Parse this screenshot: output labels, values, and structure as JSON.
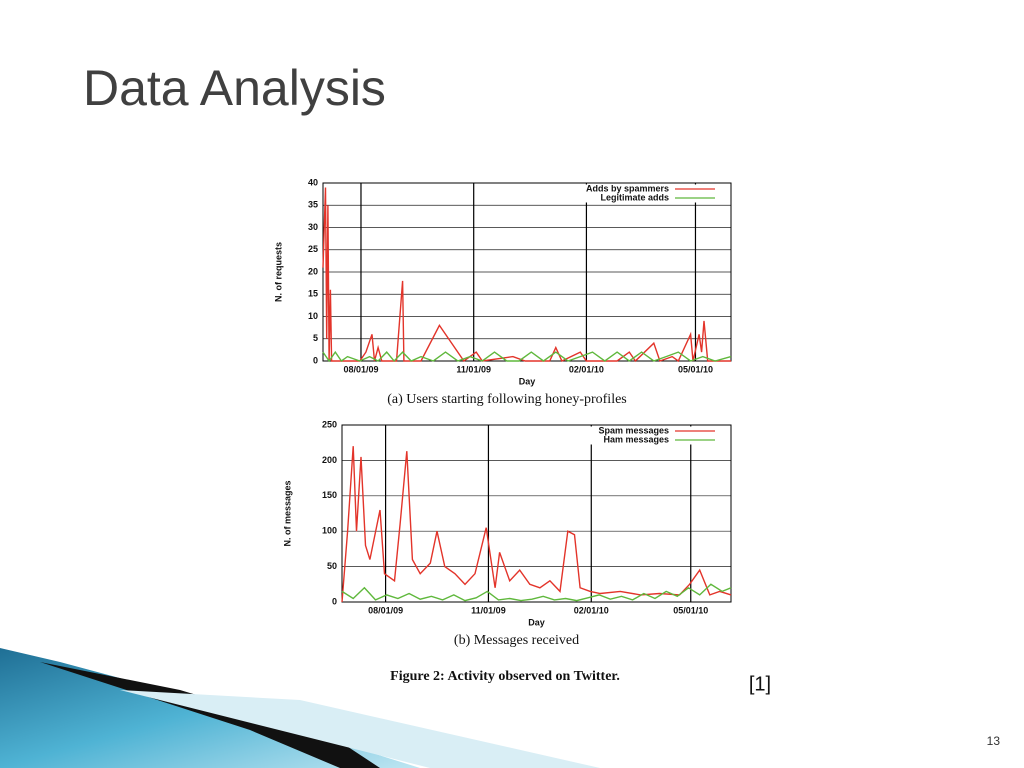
{
  "title": "Data Analysis",
  "figure_caption": "Figure 2: Activity observed on Twitter.",
  "citation": "[1]",
  "slide_number": "13",
  "chart_data": [
    {
      "type": "line",
      "caption": "(a) Users starting following honey-profiles",
      "x_label": "Day",
      "y_label": "N. of requests",
      "xlim": [
        0,
        333
      ],
      "ylim": [
        0,
        40
      ],
      "xticks": [
        {
          "value": 31,
          "label": "08/01/09"
        },
        {
          "value": 123,
          "label": "11/01/09"
        },
        {
          "value": 215,
          "label": "02/01/10"
        },
        {
          "value": 304,
          "label": "05/01/10"
        }
      ],
      "yticks": [
        0,
        5,
        10,
        15,
        20,
        25,
        30,
        35,
        40
      ],
      "grid": true,
      "legend": "top-right",
      "series": [
        {
          "name": "Adds by spammers",
          "color": "#e3342a",
          "x": [
            0,
            2,
            3,
            4,
            5,
            6,
            7,
            30,
            35,
            40,
            42,
            45,
            48,
            60,
            65,
            66,
            80,
            95,
            115,
            125,
            130,
            155,
            165,
            185,
            190,
            195,
            210,
            215,
            240,
            250,
            255,
            270,
            275,
            285,
            290,
            300,
            302,
            307,
            309,
            311,
            314,
            333
          ],
          "values": [
            21,
            39,
            5,
            35,
            0,
            16,
            0,
            0,
            2,
            6,
            0,
            3,
            0,
            0,
            18,
            0,
            0,
            8,
            0,
            2,
            0,
            1,
            0,
            0,
            3,
            0,
            2,
            0,
            0,
            2,
            0,
            4,
            0,
            1,
            0,
            6,
            0,
            6,
            2,
            9,
            0,
            0
          ]
        },
        {
          "name": "Legitimate adds",
          "color": "#5fb83c",
          "x": [
            0,
            5,
            10,
            15,
            20,
            30,
            38,
            45,
            52,
            58,
            65,
            72,
            80,
            90,
            100,
            110,
            120,
            130,
            140,
            150,
            160,
            170,
            180,
            190,
            200,
            210,
            220,
            230,
            240,
            250,
            260,
            270,
            280,
            290,
            300,
            310,
            320,
            333
          ],
          "values": [
            2,
            0,
            2,
            0,
            1,
            0,
            1,
            0,
            2,
            0,
            2,
            0,
            1,
            0,
            2,
            0,
            1,
            0,
            2,
            0,
            0,
            2,
            0,
            2,
            0,
            1,
            2,
            0,
            2,
            0,
            2,
            0,
            1,
            2,
            0,
            1,
            0,
            1
          ]
        }
      ]
    },
    {
      "type": "line",
      "caption": "(b) Messages received",
      "x_label": "Day",
      "y_label": "N. of messages",
      "xlim": [
        0,
        348
      ],
      "ylim": [
        0,
        250
      ],
      "xticks": [
        {
          "value": 39,
          "label": "08/01/09"
        },
        {
          "value": 131,
          "label": "11/01/09"
        },
        {
          "value": 223,
          "label": "02/01/10"
        },
        {
          "value": 312,
          "label": "05/01/10"
        }
      ],
      "yticks": [
        0,
        50,
        100,
        150,
        200,
        250
      ],
      "grid": true,
      "legend": "top-right",
      "series": [
        {
          "name": "Spam messages",
          "color": "#e3342a",
          "x": [
            0,
            5,
            10,
            13,
            17,
            21,
            25,
            34,
            38,
            47,
            52,
            58,
            63,
            70,
            79,
            85,
            92,
            101,
            110,
            119,
            129,
            137,
            141,
            150,
            159,
            168,
            177,
            186,
            195,
            202,
            208,
            213,
            222,
            231,
            249,
            267,
            284,
            302,
            311,
            320,
            329,
            338,
            348
          ],
          "values": [
            0,
            100,
            220,
            100,
            205,
            80,
            60,
            130,
            40,
            30,
            110,
            213,
            60,
            40,
            55,
            100,
            50,
            40,
            25,
            40,
            105,
            20,
            70,
            30,
            45,
            25,
            20,
            30,
            15,
            100,
            95,
            20,
            15,
            12,
            15,
            10,
            12,
            10,
            25,
            45,
            10,
            15,
            10
          ]
        },
        {
          "name": "Ham messages",
          "color": "#5fb83c",
          "x": [
            0,
            10,
            20,
            30,
            40,
            50,
            60,
            70,
            80,
            90,
            100,
            110,
            120,
            130,
            140,
            150,
            160,
            170,
            180,
            190,
            200,
            210,
            220,
            230,
            240,
            250,
            260,
            270,
            280,
            290,
            300,
            310,
            320,
            330,
            340,
            348
          ],
          "values": [
            15,
            5,
            20,
            3,
            10,
            5,
            12,
            4,
            8,
            3,
            10,
            2,
            6,
            15,
            3,
            5,
            2,
            4,
            8,
            3,
            5,
            2,
            6,
            10,
            4,
            8,
            3,
            12,
            5,
            15,
            8,
            20,
            10,
            25,
            15,
            20
          ]
        }
      ]
    }
  ]
}
